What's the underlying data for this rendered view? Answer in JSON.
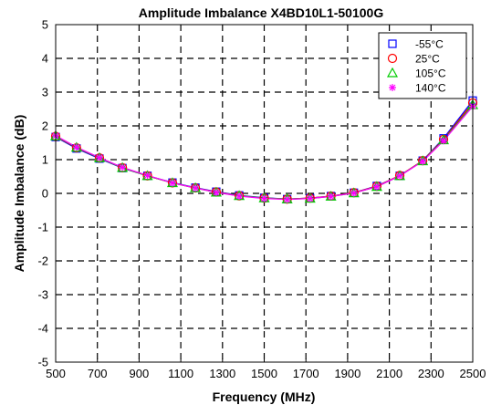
{
  "chart_data": {
    "type": "line",
    "title": "Amplitude Imbalance  X4BD10L1-50100G",
    "xlabel": "Frequency (MHz)",
    "ylabel": "Amplitude Imbalance (dB)",
    "xlim": [
      500,
      2500
    ],
    "ylim": [
      -5,
      5
    ],
    "x_ticks": [
      500,
      700,
      900,
      1100,
      1300,
      1500,
      1700,
      1900,
      2100,
      2300,
      2500
    ],
    "y_ticks": [
      -5,
      -4,
      -3,
      -2,
      -1,
      0,
      1,
      2,
      3,
      4,
      5
    ],
    "grid": true,
    "grid_style": "dashed",
    "legend_position": "top-right",
    "x": [
      500,
      600,
      710,
      820,
      940,
      1060,
      1170,
      1270,
      1380,
      1500,
      1610,
      1720,
      1820,
      1930,
      2040,
      2150,
      2260,
      2360,
      2500
    ],
    "series": [
      {
        "name": "-55°C",
        "color": "#0000ff",
        "marker": "square",
        "values": [
          1.67,
          1.33,
          1.03,
          0.75,
          0.52,
          0.32,
          0.17,
          0.05,
          -0.06,
          -0.13,
          -0.17,
          -0.14,
          -0.08,
          0.02,
          0.22,
          0.52,
          0.97,
          1.63,
          2.75
        ]
      },
      {
        "name": "25°C",
        "color": "#ff0000",
        "marker": "circle",
        "values": [
          1.69,
          1.35,
          1.05,
          0.76,
          0.52,
          0.31,
          0.16,
          0.04,
          -0.07,
          -0.14,
          -0.17,
          -0.14,
          -0.08,
          0.02,
          0.21,
          0.53,
          0.97,
          1.6,
          2.68
        ]
      },
      {
        "name": "105°C",
        "color": "#00cc00",
        "marker": "triangle",
        "values": [
          1.7,
          1.36,
          1.05,
          0.76,
          0.52,
          0.31,
          0.16,
          0.03,
          -0.07,
          -0.14,
          -0.17,
          -0.15,
          -0.09,
          0.01,
          0.2,
          0.52,
          0.96,
          1.58,
          2.62
        ]
      },
      {
        "name": "140°C",
        "color": "#ff00ff",
        "marker": "star",
        "values": [
          1.71,
          1.37,
          1.06,
          0.77,
          0.53,
          0.31,
          0.16,
          0.03,
          -0.08,
          -0.15,
          -0.18,
          -0.15,
          -0.09,
          0.01,
          0.2,
          0.52,
          0.95,
          1.56,
          2.58
        ]
      }
    ]
  }
}
